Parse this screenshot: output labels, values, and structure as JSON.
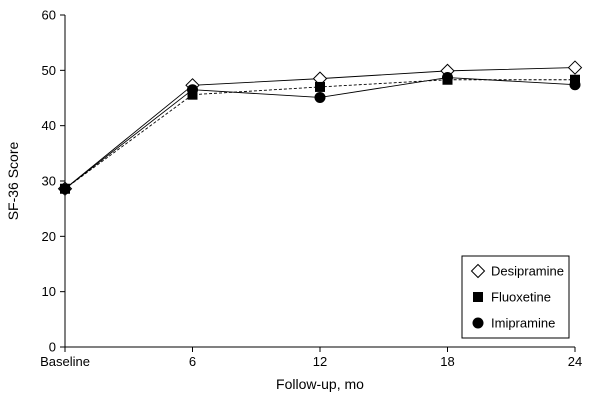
{
  "chart_data": {
    "type": "line",
    "xlabel": "Follow-up, mo",
    "ylabel": "SF-36 Score",
    "categories": [
      "Baseline",
      "6",
      "12",
      "18",
      "24"
    ],
    "ylim": [
      0,
      60
    ],
    "yticks": [
      "0",
      "10",
      "20",
      "30",
      "40",
      "50",
      "60"
    ],
    "grid": false,
    "legend_position": "bottom-right",
    "series": [
      {
        "name": "Desipramine",
        "values": [
          28.6,
          47.3,
          48.5,
          49.9,
          50.5
        ],
        "marker": "diamond-open",
        "line": "solid",
        "color": "#000000"
      },
      {
        "name": "Fluoxetine",
        "values": [
          28.6,
          45.6,
          47.0,
          48.3,
          48.3
        ],
        "marker": "square",
        "line": "dashed",
        "color": "#000000"
      },
      {
        "name": "Imipramine",
        "values": [
          28.6,
          46.5,
          45.1,
          48.7,
          47.4
        ],
        "marker": "circle",
        "line": "solid",
        "color": "#000000"
      }
    ]
  }
}
